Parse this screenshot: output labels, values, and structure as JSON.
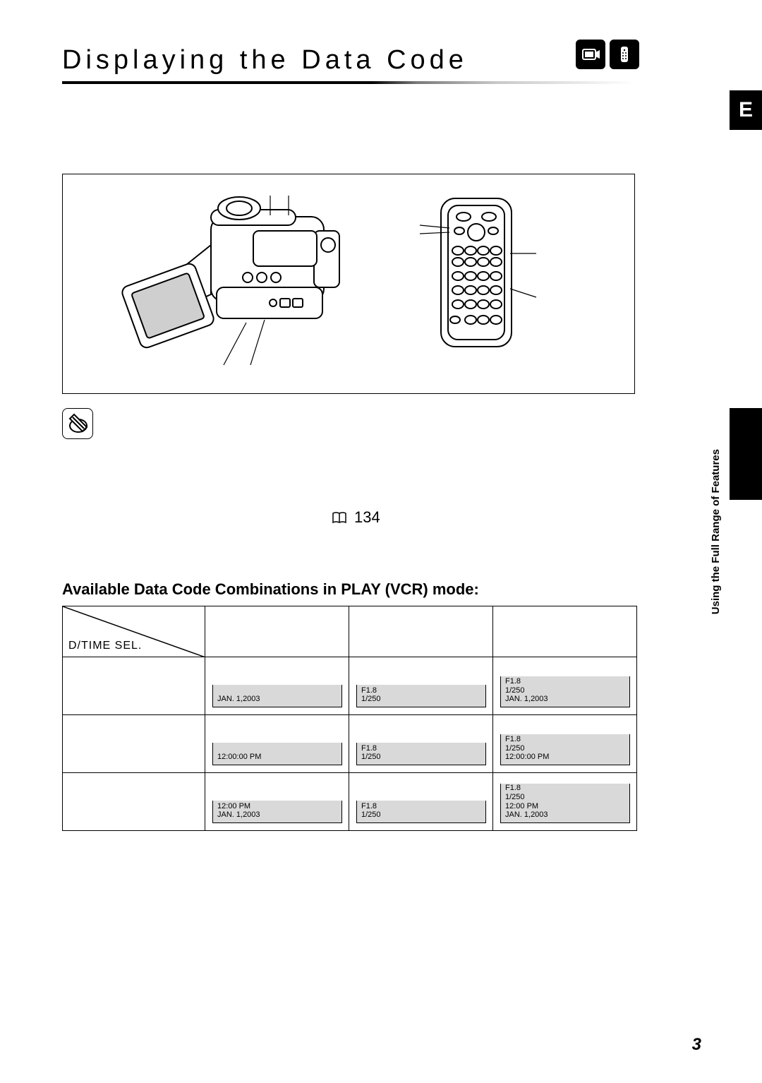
{
  "title": "Displaying the Data Code",
  "language_tab": "E",
  "page_reference": "134",
  "side_tab_text": "Using the Full Range\nof Features",
  "table_heading": "Available Data Code Combinations in PLAY (VCR) mode:",
  "corner_label": "D/TIME SEL.",
  "page_number": "3",
  "cells": {
    "r1c1": [
      "JAN. 1,2003"
    ],
    "r1c2": [
      "F1.8",
      "1/250"
    ],
    "r1c3": [
      "F1.8",
      "1/250",
      "JAN. 1,2003"
    ],
    "r2c1": [
      "12:00:00 PM"
    ],
    "r2c2": [
      "F1.8",
      "1/250"
    ],
    "r2c3": [
      "F1.8",
      "1/250",
      "12:00:00 PM"
    ],
    "r3c1": [
      "12:00 PM",
      "JAN. 1,2003"
    ],
    "r3c2": [
      "F1.8",
      "1/250"
    ],
    "r3c3": [
      "F1.8",
      "1/250",
      "12:00 PM",
      "JAN. 1,2003"
    ]
  },
  "colors": {
    "screen_bg": "#d9d9d9",
    "black": "#000000",
    "white": "#ffffff"
  }
}
